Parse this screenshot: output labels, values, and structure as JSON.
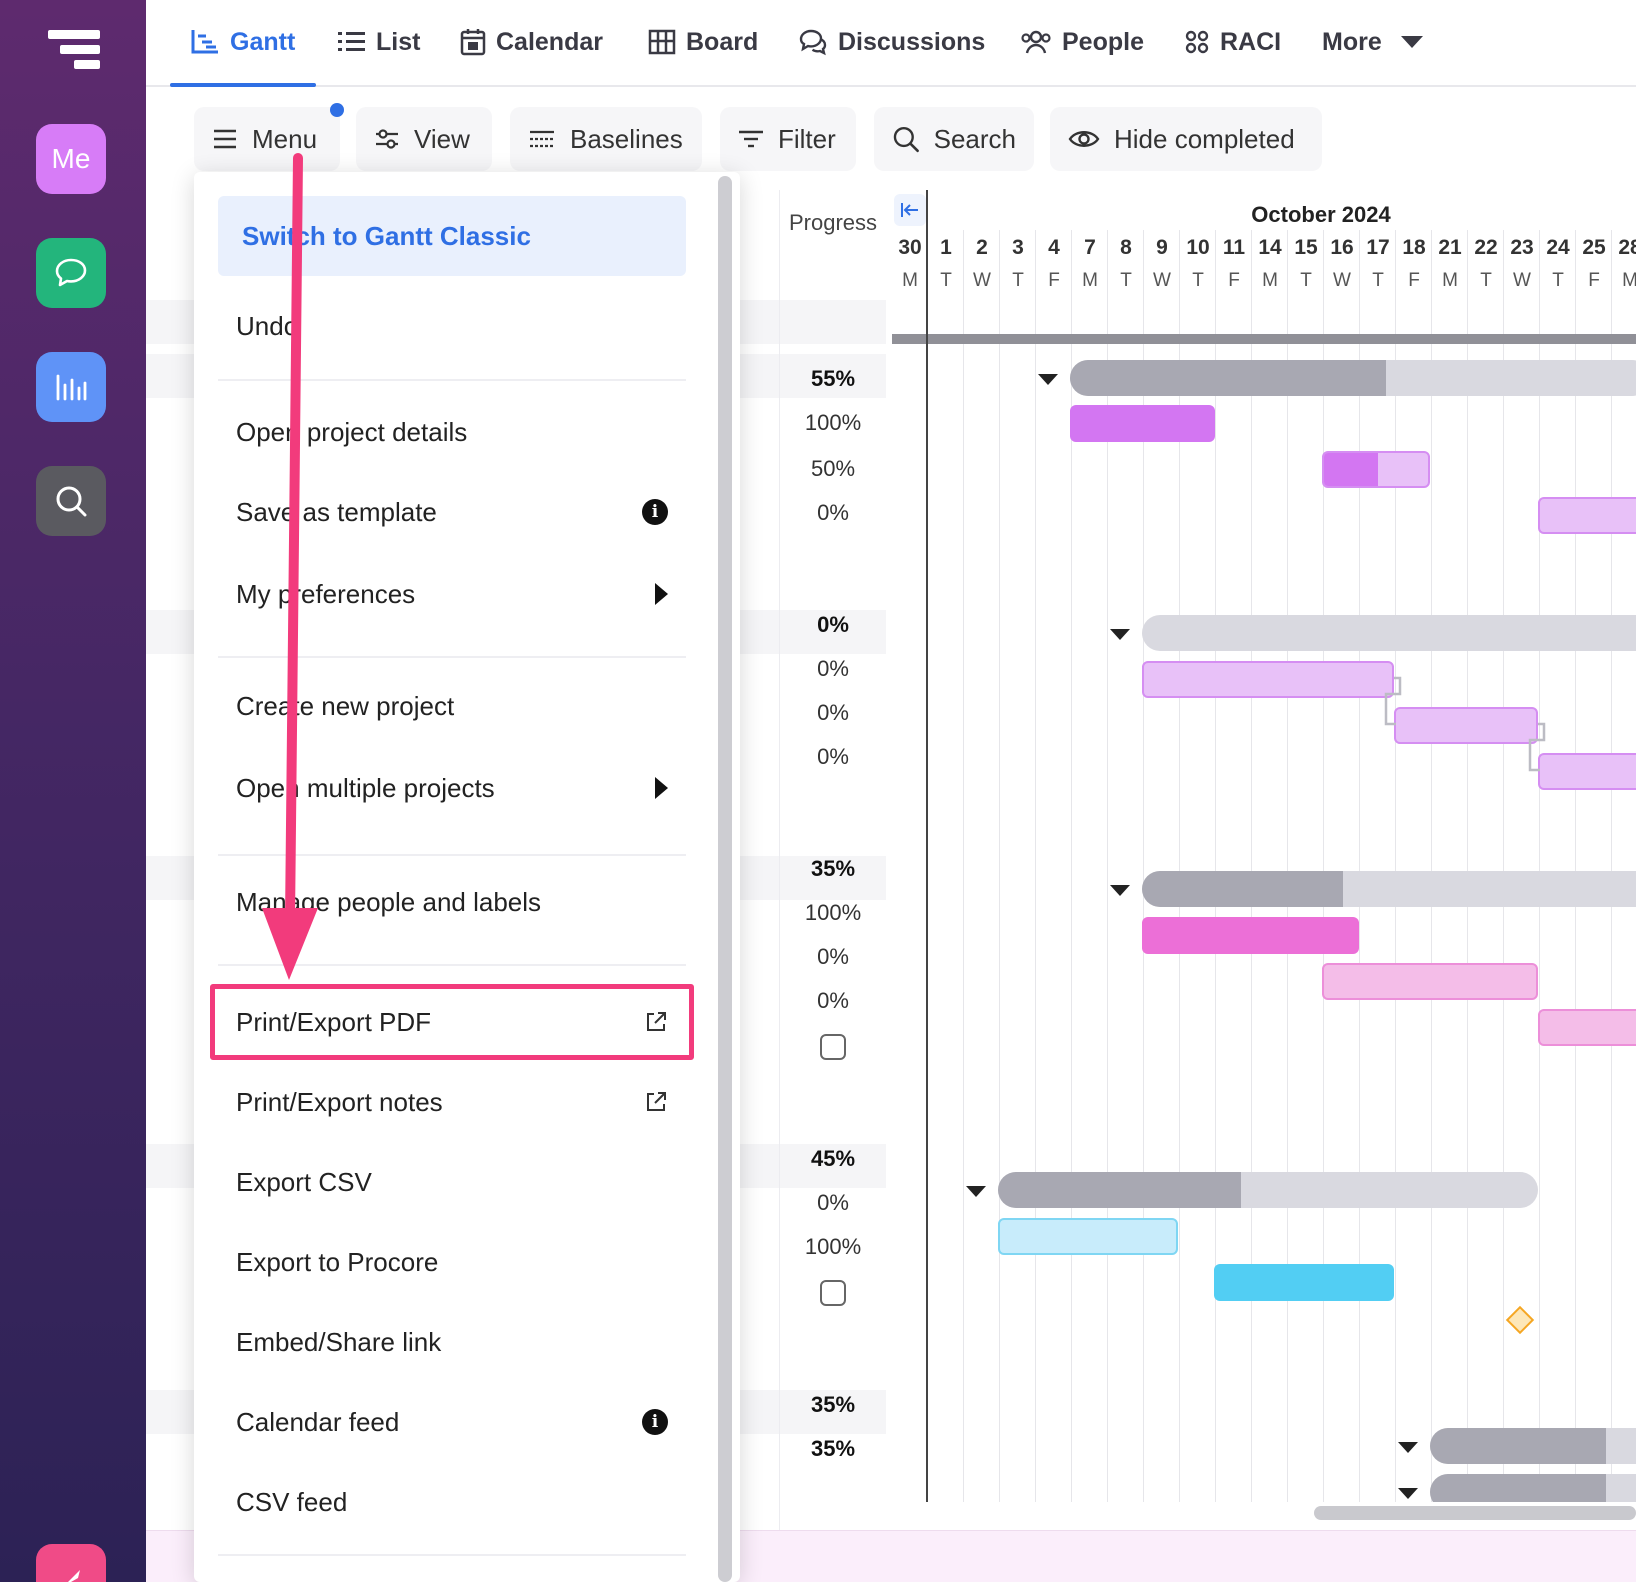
{
  "nav": {
    "tabs": [
      {
        "label": "Gantt",
        "icon": "gantt-icon"
      },
      {
        "label": "List",
        "icon": "list-icon"
      },
      {
        "label": "Calendar",
        "icon": "calendar-icon"
      },
      {
        "label": "Board",
        "icon": "board-icon"
      },
      {
        "label": "Discussions",
        "icon": "discussions-icon"
      },
      {
        "label": "People",
        "icon": "people-icon"
      },
      {
        "label": "RACI",
        "icon": "raci-icon"
      },
      {
        "label": "More",
        "icon": "caret-down-icon"
      }
    ],
    "active_tab": "Gantt"
  },
  "rail": {
    "me_label": "Me",
    "icons": [
      "app-logo-icon",
      "chat-icon",
      "reports-icon",
      "search-icon",
      "rocket-icon"
    ]
  },
  "toolbar": {
    "menu": "Menu",
    "view": "View",
    "baselines": "Baselines",
    "filter": "Filter",
    "search": "Search",
    "hide_completed": "Hide completed"
  },
  "menu": {
    "top_item": "Switch to Gantt Classic",
    "items": {
      "undo": "Undo",
      "open_project_details": "Open project details",
      "save_as_template": "Save as template",
      "my_preferences": "My preferences",
      "create_new_project": "Create new project",
      "open_multiple_projects": "Open multiple projects",
      "manage_people_labels": "Manage people and labels",
      "print_export_pdf": "Print/Export PDF",
      "print_export_notes": "Print/Export notes",
      "export_csv": "Export CSV",
      "export_procore": "Export to Procore",
      "embed_share": "Embed/Share link",
      "calendar_feed": "Calendar feed",
      "csv_feed": "CSV feed"
    },
    "highlighted_item": "Print/Export PDF",
    "info_glyph": "i"
  },
  "grid": {
    "progress_header": "Progress",
    "progress_values": [
      "55%",
      "100%",
      "50%",
      "0%",
      "0%",
      "0%",
      "0%",
      "0%",
      "35%",
      "100%",
      "0%",
      "0%",
      "45%",
      "0%",
      "100%",
      "35%",
      "35%"
    ]
  },
  "chart": {
    "month": "October 2024",
    "days": [
      {
        "d": "30",
        "w": "M"
      },
      {
        "d": "1",
        "w": "T"
      },
      {
        "d": "2",
        "w": "W"
      },
      {
        "d": "3",
        "w": "T"
      },
      {
        "d": "4",
        "w": "F"
      },
      {
        "d": "7",
        "w": "M"
      },
      {
        "d": "8",
        "w": "T"
      },
      {
        "d": "9",
        "w": "W"
      },
      {
        "d": "10",
        "w": "T"
      },
      {
        "d": "11",
        "w": "F"
      },
      {
        "d": "14",
        "w": "M"
      },
      {
        "d": "15",
        "w": "T"
      },
      {
        "d": "16",
        "w": "W"
      },
      {
        "d": "17",
        "w": "T"
      },
      {
        "d": "18",
        "w": "F"
      },
      {
        "d": "21",
        "w": "M"
      },
      {
        "d": "22",
        "w": "T"
      },
      {
        "d": "23",
        "w": "W"
      },
      {
        "d": "24",
        "w": "T"
      },
      {
        "d": "25",
        "w": "F"
      },
      {
        "d": "28",
        "w": "M"
      }
    ],
    "colors": {
      "summary_bg": "#d9d9e0",
      "summary_done": "#a8a8b2",
      "purple": "#d376f2",
      "purple_light": "#e8c1f8",
      "pink": "#ec6fd7",
      "pink_light": "#f4bde8",
      "cyan": "#52cef3",
      "cyan_light": "#c8ecfb",
      "milestone": "#f5a623",
      "accent": "#2f6fe4",
      "highlight": "#f23b7c"
    }
  }
}
